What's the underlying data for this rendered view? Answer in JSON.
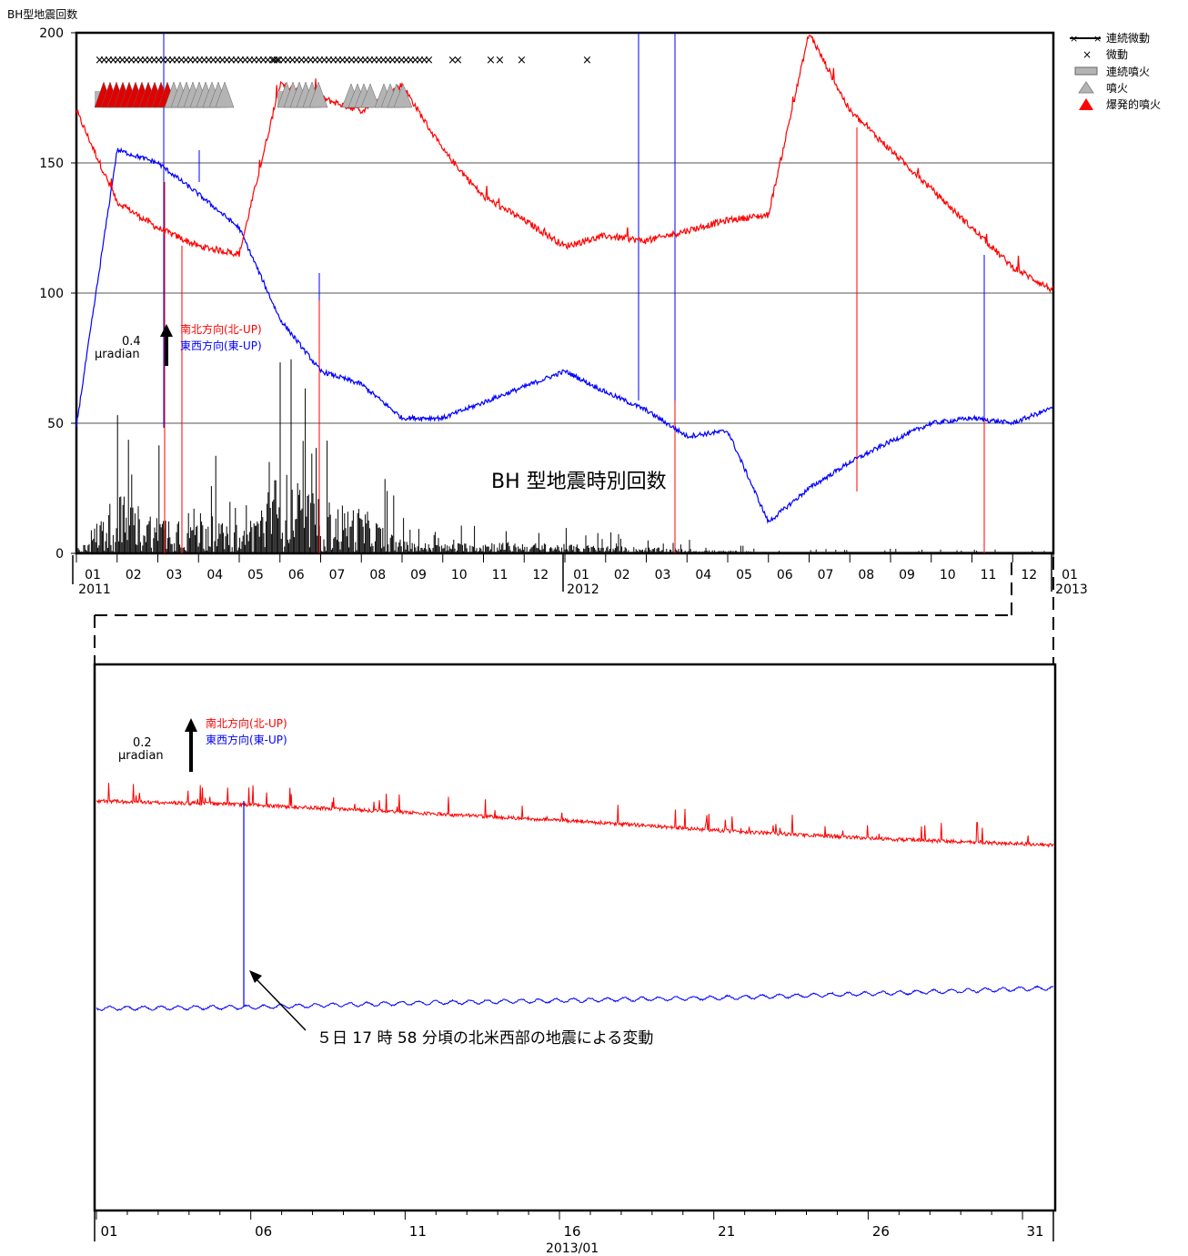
{
  "top_chart": {
    "ylabel": "BH型地震回数",
    "inner_title": "BH 型地震時別回数",
    "yticks": [
      "200",
      "150",
      "100",
      "50",
      "0"
    ],
    "months": [
      "01",
      "02",
      "03",
      "04",
      "05",
      "06",
      "07",
      "08",
      "09",
      "10",
      "11",
      "12",
      "01",
      "02",
      "03",
      "04",
      "05",
      "06",
      "07",
      "08",
      "09",
      "10",
      "11",
      "12",
      "01"
    ],
    "year_labels": [
      "2011",
      "2012",
      "2013"
    ],
    "scale_value": "0.4",
    "scale_unit": "μradian",
    "ns_label": "南北方向(北-UP)",
    "ew_label": "東西方向(東-UP)"
  },
  "legend": {
    "items": [
      {
        "symbol": "line-x",
        "label": "連続微動"
      },
      {
        "symbol": "x",
        "label": "微動"
      },
      {
        "symbol": "gray-rect",
        "label": "連続噴火"
      },
      {
        "symbol": "gray-triangle",
        "label": "噴火"
      },
      {
        "symbol": "red-triangle",
        "label": "爆発的噴火"
      }
    ]
  },
  "bottom_chart": {
    "scale_value": "0.2",
    "scale_unit": "μradian",
    "ns_label": "南北方向(北-UP)",
    "ew_label": "東西方向(東-UP)",
    "annotation": "５日 17 時 58 分頃の北米西部の地震による変動",
    "xticks": [
      "01",
      "06",
      "11",
      "16",
      "21",
      "26",
      "31"
    ],
    "xlabel": "2013/01"
  },
  "colors": {
    "ns": "#ff0000",
    "ew": "#0000ff",
    "bars": "#000000",
    "grid": "#000000",
    "gray": "#b4b4b4"
  },
  "chart_data": [
    {
      "type": "line",
      "title": "",
      "xlabel": "",
      "ylabel": "BH型地震回数",
      "ylim": [
        0,
        200
      ],
      "x": [
        "2011-01",
        "2011-02",
        "2011-03",
        "2011-04",
        "2011-05",
        "2011-06",
        "2011-07",
        "2011-08",
        "2011-09",
        "2011-10",
        "2011-11",
        "2011-12",
        "2012-01",
        "2012-02",
        "2012-03",
        "2012-04",
        "2012-05",
        "2012-06",
        "2012-07",
        "2012-08",
        "2012-09",
        "2012-10",
        "2012-11",
        "2012-12",
        "2013-01"
      ],
      "series": [
        {
          "name": "南北方向(北-UP)",
          "values": [
            170,
            135,
            125,
            118,
            115,
            180,
            175,
            170,
            180,
            155,
            137,
            128,
            118,
            122,
            120,
            124,
            128,
            130,
            200,
            170,
            155,
            140,
            125,
            110,
            101
          ]
        },
        {
          "name": "東西方向(東-UP)",
          "values": [
            49,
            155,
            150,
            138,
            125,
            90,
            70,
            65,
            52,
            52,
            58,
            64,
            70,
            62,
            55,
            45,
            47,
            12,
            25,
            35,
            43,
            50,
            52,
            50,
            56
          ]
        },
        {
          "name": "BH 型地震時別回数",
          "type": "bar",
          "values": [
            2,
            40,
            25,
            30,
            12,
            55,
            35,
            30,
            8,
            6,
            8,
            7,
            6,
            5,
            4,
            3,
            2,
            1,
            1,
            1,
            1,
            1,
            1,
            1,
            1
          ]
        }
      ],
      "grid": true,
      "legend": "right"
    },
    {
      "type": "line",
      "title": "",
      "xlabel": "2013/01",
      "x": [
        "01",
        "06",
        "11",
        "16",
        "21",
        "26",
        "31"
      ],
      "series": [
        {
          "name": "南北方向(北-UP)",
          "values": [
            1.0,
            0.95,
            0.85,
            0.75,
            0.62,
            0.52,
            0.45
          ]
        },
        {
          "name": "東西方向(東-UP)",
          "values": [
            0.0,
            0.03,
            0.12,
            0.18,
            0.24,
            0.34,
            0.45
          ]
        }
      ],
      "annotations": [
        "５日 17 時 58 分頃の北米西部の地震による変動"
      ]
    }
  ]
}
